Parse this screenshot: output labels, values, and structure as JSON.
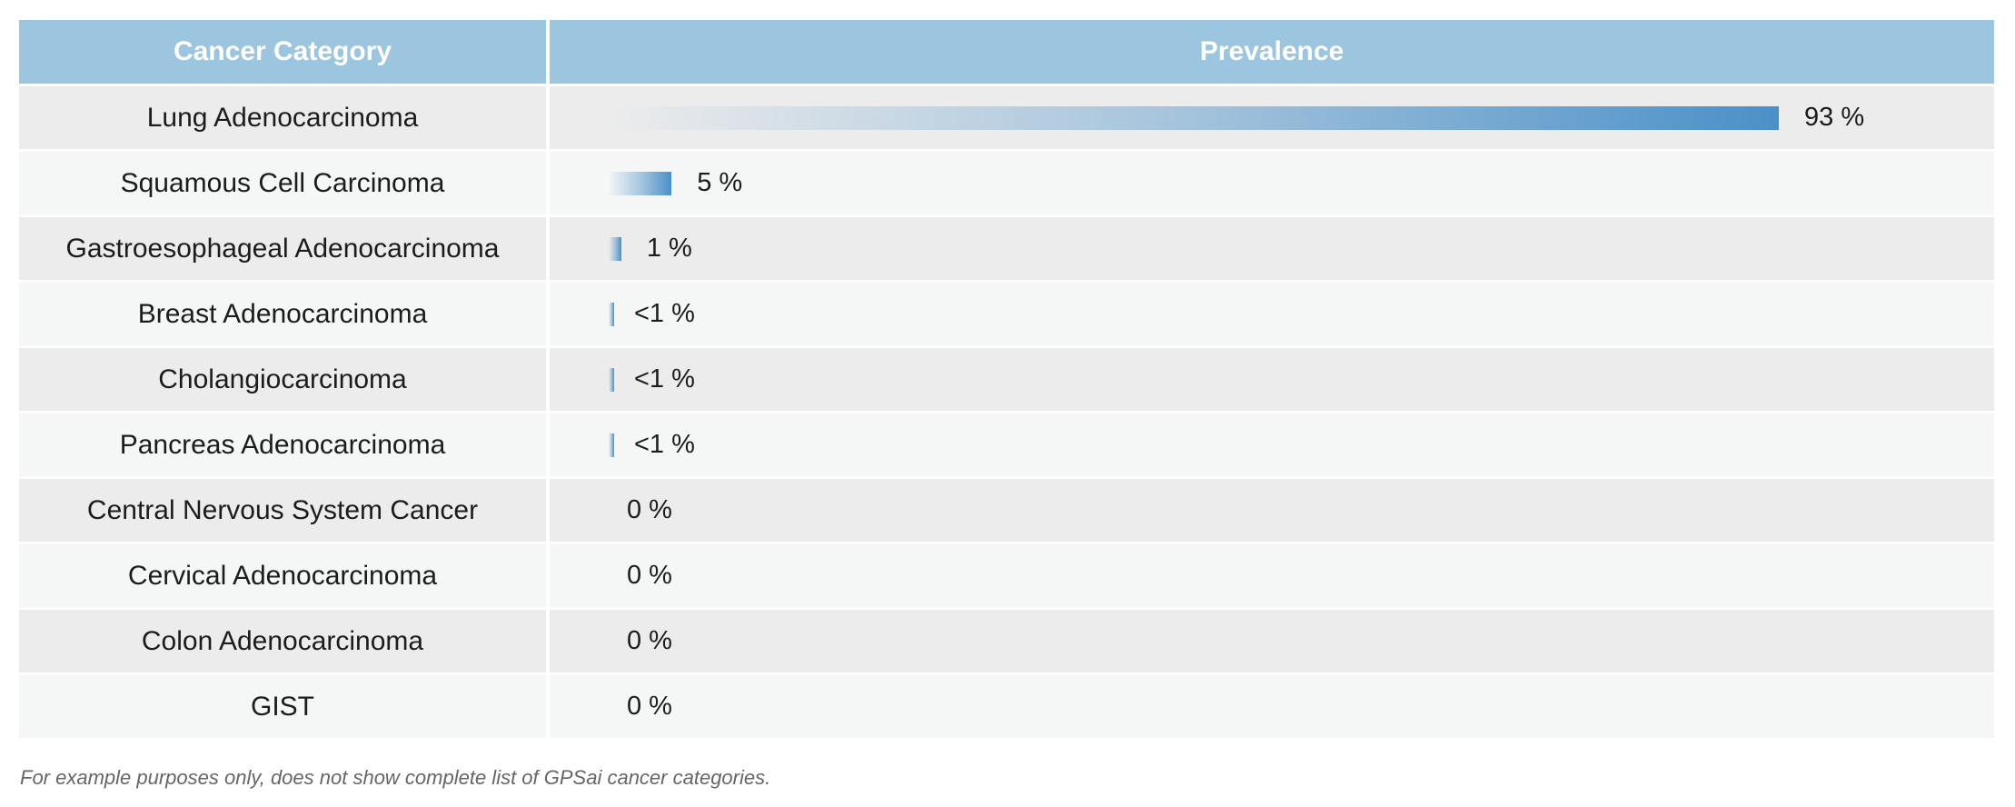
{
  "header": {
    "category_label": "Cancer Category",
    "prevalence_label": "Prevalence"
  },
  "chart_data": {
    "type": "bar",
    "orientation": "horizontal",
    "categories": [
      "Lung Adenocarcinoma",
      "Squamous Cell Carcinoma",
      "Gastroesophageal Adenocarcinoma",
      "Breast Adenocarcinoma",
      "Cholangiocarcinoma",
      "Pancreas Adenocarcinoma",
      "Central Nervous System Cancer",
      "Cervical Adenocarcinoma",
      "Colon Adenocarcinoma",
      "GIST"
    ],
    "values": [
      93,
      5,
      1,
      0.4,
      0.4,
      0.4,
      0,
      0,
      0,
      0
    ],
    "labels": [
      "93 %",
      "5 %",
      "1 %",
      "<1 %",
      "<1 %",
      "<1 %",
      "0 %",
      "0 %",
      "0 %",
      "0 %"
    ],
    "xlim": [
      0,
      100
    ],
    "bar_color": "#4a90c8"
  },
  "footnote": "For example purposes only, does not show complete list of GPSai cancer categories."
}
